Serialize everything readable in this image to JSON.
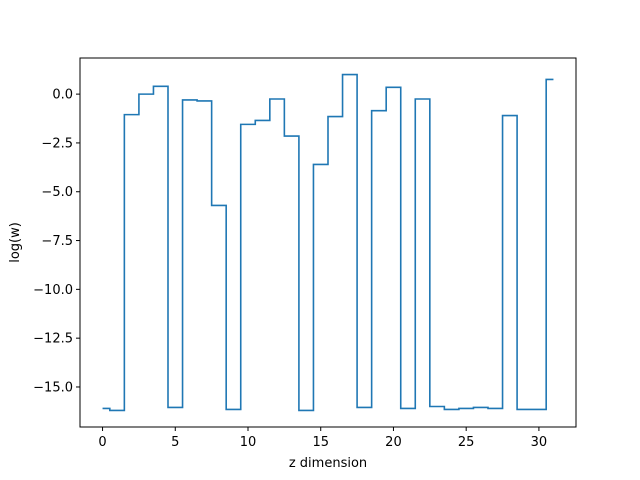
{
  "chart_data": {
    "type": "line",
    "drawstyle": "steps-mid",
    "title": "",
    "xlabel": "z dimension",
    "ylabel": "log(w)",
    "xlim": [
      -1.55,
      32.55
    ],
    "ylim": [
      -17.05,
      1.85
    ],
    "xticks": [
      0,
      5,
      10,
      15,
      20,
      25,
      30
    ],
    "xtick_labels": [
      "0",
      "5",
      "10",
      "15",
      "20",
      "25",
      "30"
    ],
    "yticks": [
      0.0,
      -2.5,
      -5.0,
      -7.5,
      -10.0,
      -12.5,
      -15.0
    ],
    "ytick_labels": [
      "0.0",
      "−2.5",
      "−5.0",
      "−7.5",
      "−10.0",
      "−12.5",
      "−15.0"
    ],
    "grid": false,
    "legend": "none",
    "series": [
      {
        "color": "#1f77b4",
        "x": [
          0,
          1,
          2,
          3,
          4,
          5,
          6,
          7,
          8,
          9,
          10,
          11,
          12,
          13,
          14,
          15,
          16,
          17,
          18,
          19,
          20,
          21,
          22,
          23,
          24,
          25,
          26,
          27,
          28,
          29,
          30,
          31
        ],
        "y": [
          -16.1,
          -16.2,
          -1.05,
          0.0,
          0.4,
          -16.05,
          -0.3,
          -0.35,
          -5.7,
          -16.15,
          -1.55,
          -1.35,
          -0.25,
          -2.15,
          -16.2,
          -3.6,
          -1.15,
          1.0,
          -16.05,
          -0.85,
          0.35,
          -16.1,
          -0.25,
          -16.0,
          -16.15,
          -16.1,
          -16.05,
          -16.1,
          -1.1,
          -16.15,
          -16.15,
          0.75
        ]
      }
    ]
  }
}
